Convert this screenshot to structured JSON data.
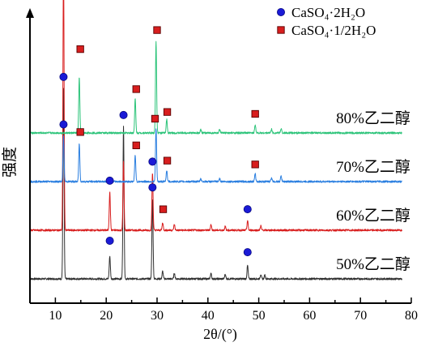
{
  "chart_data": {
    "type": "line",
    "title": "",
    "xlabel": "2θ/(°)",
    "ylabel": "强度",
    "xlim": [
      5,
      80
    ],
    "xticks": [
      10,
      20,
      30,
      40,
      50,
      60,
      70,
      80
    ],
    "yticks": [],
    "grid": false,
    "legend": {
      "placement": "top-right",
      "entries": [
        {
          "marker": "circle",
          "color": "#1a1ad6",
          "text": "CaSO₄·2H₂O"
        },
        {
          "marker": "square",
          "color": "#d81e1e",
          "text": "CaSO₄·1/2H₂O"
        }
      ]
    },
    "series": [
      {
        "name": "50%乙二醇",
        "color": "#303030",
        "baseline_level": 0,
        "peaks": [
          {
            "x": 11.6,
            "h": 5.0
          },
          {
            "x": 20.7,
            "h": 0.6
          },
          {
            "x": 23.4,
            "h": 4.0
          },
          {
            "x": 29.1,
            "h": 2.1
          },
          {
            "x": 31.1,
            "h": 0.2
          },
          {
            "x": 33.4,
            "h": 0.15
          },
          {
            "x": 40.6,
            "h": 0.15
          },
          {
            "x": 43.4,
            "h": 0.12
          },
          {
            "x": 47.8,
            "h": 0.35
          },
          {
            "x": 50.4,
            "h": 0.12
          },
          {
            "x": 51.2,
            "h": 0.1
          }
        ],
        "markers": [
          {
            "x": 11.6,
            "type": "circle",
            "level": 5.3
          },
          {
            "x": 20.7,
            "type": "circle",
            "level": 1.0
          },
          {
            "x": 23.4,
            "type": "circle",
            "level": 4.3
          },
          {
            "x": 29.1,
            "type": "circle",
            "level": 2.4
          },
          {
            "x": 47.8,
            "type": "circle",
            "level": 0.7
          }
        ]
      },
      {
        "name": "60%乙二醇",
        "color": "#d81e1e",
        "baseline_level": 1,
        "peaks": [
          {
            "x": 11.6,
            "h": 7.0
          },
          {
            "x": 20.7,
            "h": 1.0
          },
          {
            "x": 23.4,
            "h": 1.8
          },
          {
            "x": 29.1,
            "h": 1.5
          },
          {
            "x": 31.1,
            "h": 0.2
          },
          {
            "x": 33.4,
            "h": 0.15
          },
          {
            "x": 40.6,
            "h": 0.15
          },
          {
            "x": 43.4,
            "h": 0.1
          },
          {
            "x": 47.8,
            "h": 0.25
          },
          {
            "x": 50.4,
            "h": 0.12
          }
        ],
        "markers": [
          {
            "x": 20.7,
            "type": "circle",
            "level": 1.3
          },
          {
            "x": 29.1,
            "type": "circle",
            "level": 1.8
          },
          {
            "x": 31.2,
            "type": "square",
            "level": 0.55
          },
          {
            "x": 47.8,
            "type": "circle",
            "level": 0.55
          }
        ]
      },
      {
        "name": "70%乙二醇",
        "color": "#2b7fe0",
        "baseline_level": 2,
        "peaks": [
          {
            "x": 11.6,
            "h": 1.2
          },
          {
            "x": 14.7,
            "h": 1.0
          },
          {
            "x": 25.7,
            "h": 0.7
          },
          {
            "x": 29.8,
            "h": 1.4
          },
          {
            "x": 31.9,
            "h": 0.3
          },
          {
            "x": 38.6,
            "h": 0.08
          },
          {
            "x": 42.3,
            "h": 0.08
          },
          {
            "x": 49.3,
            "h": 0.2
          },
          {
            "x": 52.5,
            "h": 0.1
          },
          {
            "x": 54.4,
            "h": 0.15
          }
        ],
        "markers": [
          {
            "x": 11.6,
            "type": "circle",
            "level": 1.5
          },
          {
            "x": 14.9,
            "type": "square",
            "level": 1.3
          },
          {
            "x": 25.9,
            "type": "square",
            "level": 0.95
          },
          {
            "x": 29.6,
            "type": "square",
            "level": 1.65
          },
          {
            "x": 32.0,
            "type": "square",
            "level": 0.55
          },
          {
            "x": 49.3,
            "type": "square",
            "level": 0.45
          }
        ]
      },
      {
        "name": "80%乙二醇",
        "color": "#2dc47a",
        "baseline_level": 3,
        "peaks": [
          {
            "x": 14.7,
            "h": 1.45
          },
          {
            "x": 25.7,
            "h": 0.9
          },
          {
            "x": 29.8,
            "h": 2.4
          },
          {
            "x": 31.9,
            "h": 0.35
          },
          {
            "x": 38.6,
            "h": 0.08
          },
          {
            "x": 42.3,
            "h": 0.08
          },
          {
            "x": 49.3,
            "h": 0.22
          },
          {
            "x": 52.5,
            "h": 0.1
          },
          {
            "x": 54.4,
            "h": 0.12
          }
        ],
        "markers": [
          {
            "x": 14.9,
            "type": "square",
            "level": 2.2
          },
          {
            "x": 25.9,
            "type": "square",
            "level": 1.15
          },
          {
            "x": 30.0,
            "type": "square",
            "level": 2.7
          },
          {
            "x": 32.0,
            "type": "square",
            "level": 0.55
          },
          {
            "x": 49.3,
            "type": "square",
            "level": 0.5
          }
        ]
      }
    ]
  }
}
